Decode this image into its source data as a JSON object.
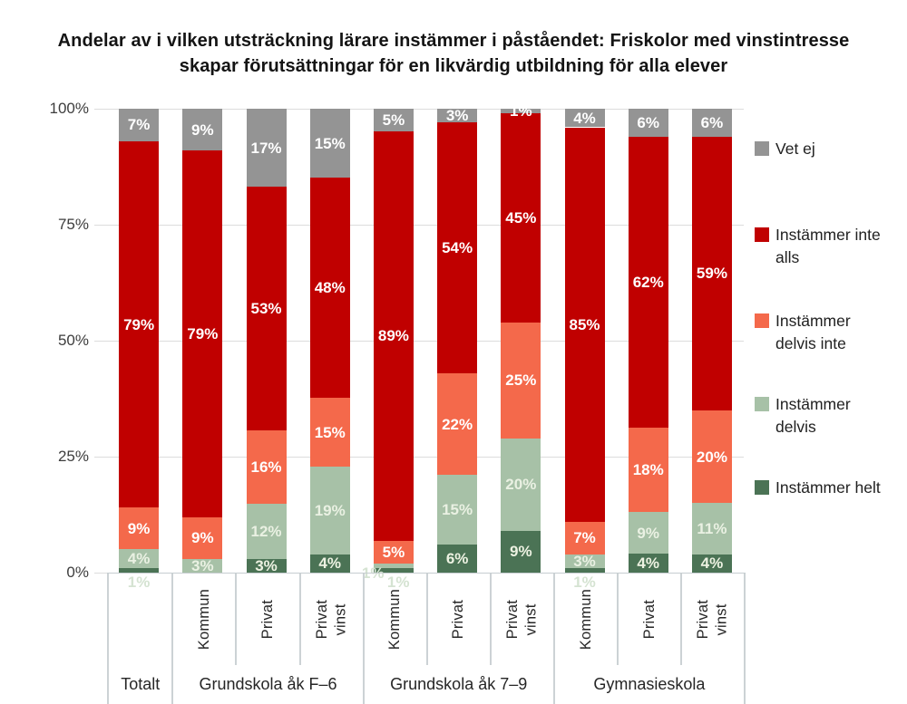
{
  "title": "Andelar av i vilken utsträckning lärare instämmer i påståendet: Friskolor med vinstintresse skapar förutsättningar för en likvärdig utbildning för alla elever",
  "chart_data": {
    "type": "bar",
    "stacked": true,
    "grid": true,
    "ylim": [
      0,
      100
    ],
    "yticks": [
      0,
      25,
      50,
      75,
      100
    ],
    "ytick_labels": [
      "0%",
      "25%",
      "50%",
      "75%",
      "100%"
    ],
    "legend_position": "right",
    "series_bottom_to_top": [
      "Instämmer helt",
      "Instämmer delvis",
      "Instämmer delvis inte",
      "Instämmer inte alls",
      "Vet ej"
    ],
    "legend": [
      {
        "label": "Vet ej",
        "color": "#949494"
      },
      {
        "label": "Instämmer inte alls",
        "color": "#c00000"
      },
      {
        "label": "Instämmer delvis inte",
        "color": "#f4694b"
      },
      {
        "label": "Instämmer delvis",
        "color": "#a7c1a7"
      },
      {
        "label": "Instämmer helt",
        "color": "#4b7355"
      }
    ],
    "groups": [
      {
        "label": "Totalt",
        "bars": [
          {
            "label": "",
            "values": [
              1,
              4,
              9,
              79,
              7
            ]
          }
        ]
      },
      {
        "label": "Grundskola åk F–6",
        "bars": [
          {
            "label": "Kommun",
            "values": [
              0,
              3,
              9,
              79,
              9
            ]
          },
          {
            "label": "Privat",
            "values": [
              3,
              12,
              16,
              53,
              17
            ]
          },
          {
            "label": "Privat vinst",
            "values": [
              4,
              19,
              15,
              48,
              15
            ]
          }
        ]
      },
      {
        "label": "Grundskola åk 7–9",
        "bars": [
          {
            "label": "Kommun",
            "values": [
              1,
              1,
              5,
              89,
              5
            ]
          },
          {
            "label": "Privat",
            "values": [
              6,
              15,
              22,
              54,
              3
            ]
          },
          {
            "label": "Privat vinst",
            "values": [
              9,
              20,
              25,
              45,
              1
            ]
          }
        ]
      },
      {
        "label": "Gymnasieskola",
        "bars": [
          {
            "label": "Kommun",
            "values": [
              1,
              3,
              7,
              85,
              4
            ]
          },
          {
            "label": "Privat",
            "values": [
              4,
              9,
              18,
              62,
              6
            ]
          },
          {
            "label": "Privat vinst",
            "values": [
              4,
              11,
              20,
              59,
              6
            ]
          }
        ]
      }
    ]
  }
}
